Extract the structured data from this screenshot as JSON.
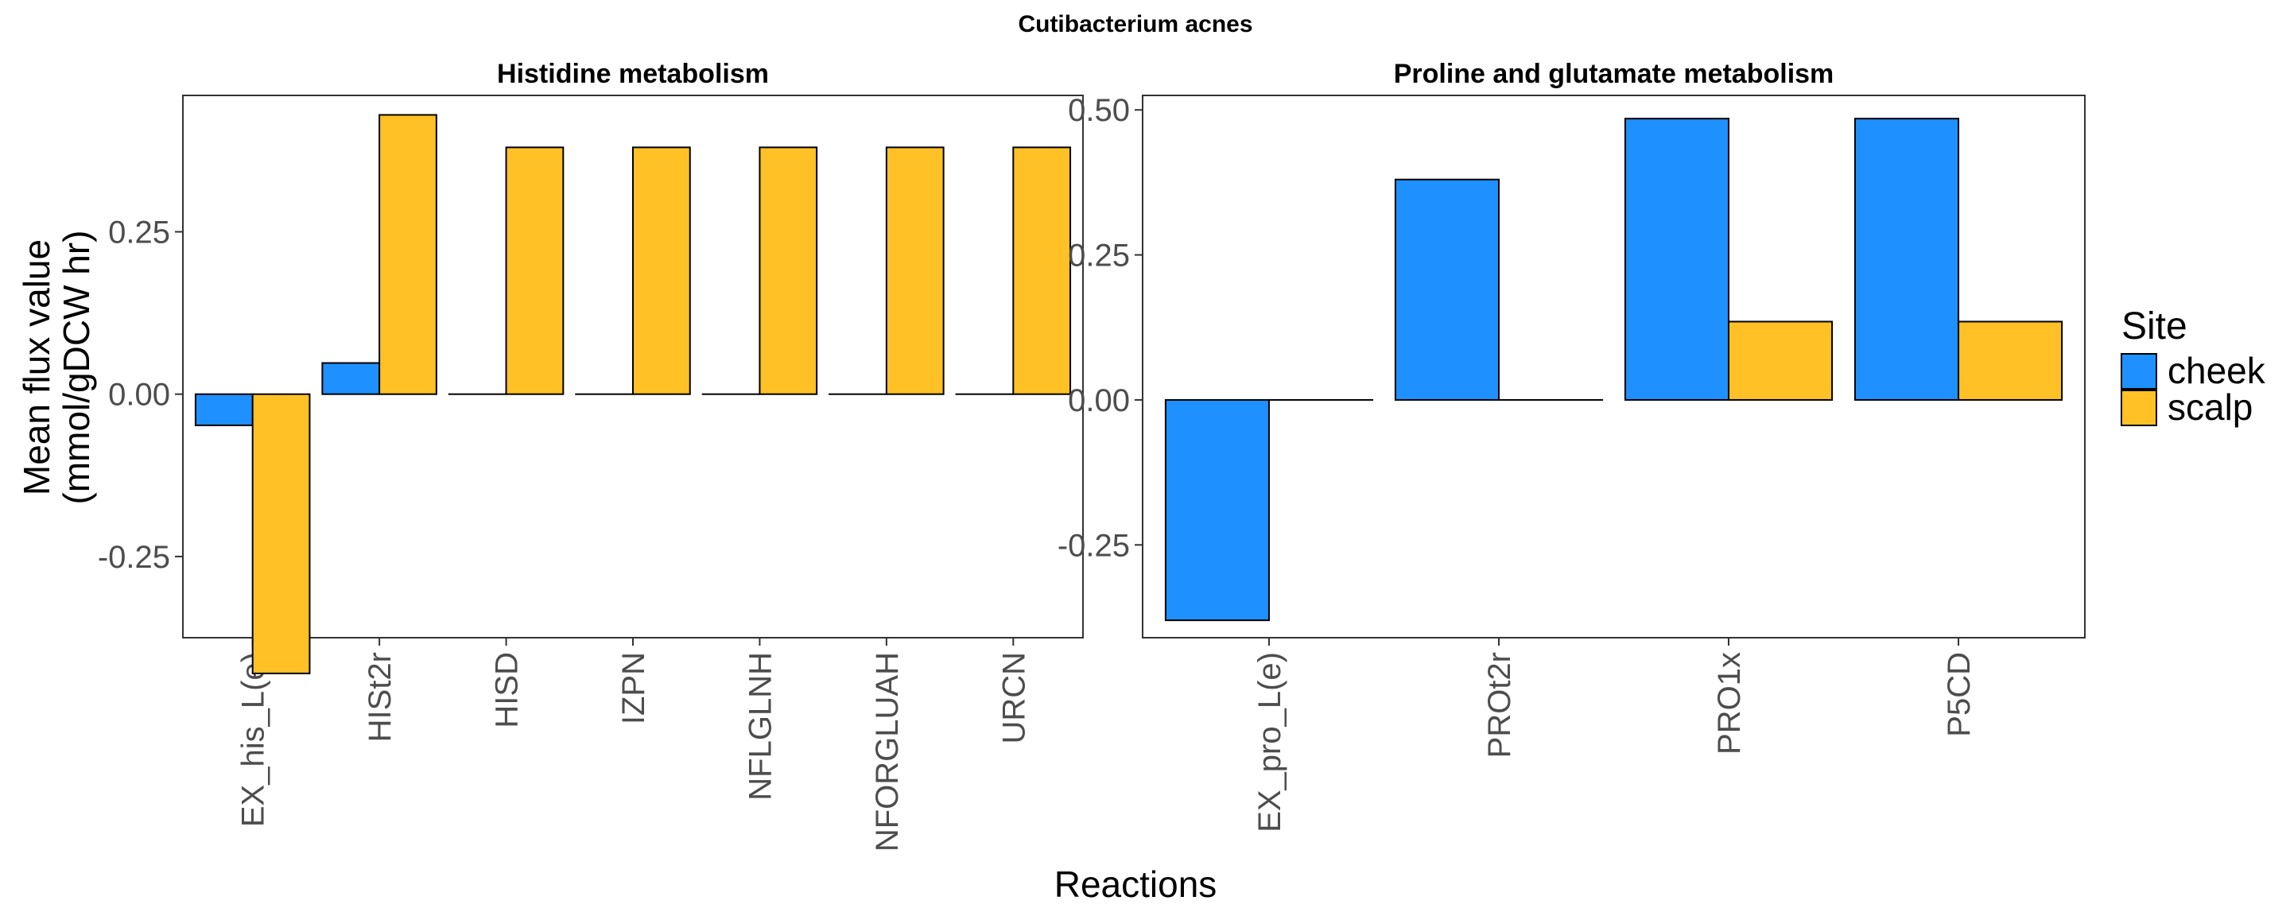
{
  "chart_data": {
    "type": "bar",
    "title": "Cutibacterium acnes",
    "xlabel": "Reactions",
    "ylabel": "Mean flux value\n(mmol/gDCW hr)",
    "legend": {
      "title": "Site",
      "placement": "right",
      "entries": [
        {
          "name": "cheek",
          "color": "#1E90FF"
        },
        {
          "name": "scalp",
          "color": "#FFC125"
        }
      ]
    },
    "grid": false,
    "panels": [
      {
        "title": "Histidine metabolism",
        "ylim": [
          -0.375,
          0.46
        ],
        "yticks": [
          -0.25,
          0.0,
          0.25
        ],
        "ytick_labels": [
          "-0.25",
          "0.00",
          "0.25"
        ],
        "categories": [
          "EX_his_L(e)",
          "HISt2r",
          "HISD",
          "IZPN",
          "NFLGLNH",
          "NFORGLUAH",
          "URCN"
        ],
        "series": [
          {
            "name": "cheek",
            "values": [
              -0.048,
              0.048,
              0.0,
              0.0,
              0.0,
              0.0,
              0.0
            ]
          },
          {
            "name": "scalp",
            "values": [
              -0.43,
              0.43,
              0.38,
              0.38,
              0.38,
              0.38,
              0.38
            ]
          }
        ]
      },
      {
        "title": "Proline and glutamate metabolism",
        "ylim": [
          -0.41,
          0.525
        ],
        "yticks": [
          -0.25,
          0.0,
          0.25,
          0.5
        ],
        "ytick_labels": [
          "-0.25",
          "0.00",
          "0.25",
          "0.50"
        ],
        "categories": [
          "EX_pro_L(e)",
          "PROt2r",
          "PRO1x",
          "P5CD"
        ],
        "series": [
          {
            "name": "cheek",
            "values": [
              -0.38,
              0.38,
              0.485,
              0.485
            ]
          },
          {
            "name": "scalp",
            "values": [
              0.0,
              0.0,
              0.135,
              0.135
            ]
          }
        ]
      }
    ]
  }
}
